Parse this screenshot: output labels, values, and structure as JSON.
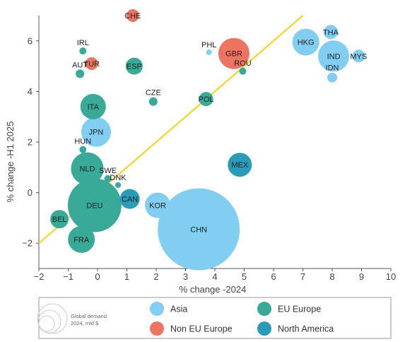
{
  "chart_data": {
    "type": "scatter",
    "xlabel": "% change -2024",
    "ylabel": "% change -H1 2025",
    "xlim": [
      -2,
      10
    ],
    "ylim": [
      -3,
      7
    ],
    "xticks": [
      -2,
      -1,
      0,
      1,
      2,
      3,
      4,
      5,
      6,
      7,
      8,
      9,
      10
    ],
    "yticks": [
      -2,
      0,
      2,
      4,
      6
    ],
    "grid": false,
    "reference_line": {
      "x": [
        -2,
        7
      ],
      "y": [
        -2,
        7
      ],
      "color": "#f2d21b"
    },
    "colors": {
      "Asia": "#82cdf2",
      "EU Europe": "#3aaa98",
      "Non EU Europe": "#ee7462",
      "North America": "#2a9cb8"
    },
    "legend": {
      "size_label": "Global demand\n2024, mld $",
      "groups": [
        "Asia",
        "EU Europe",
        "Non EU Europe",
        "North America"
      ]
    },
    "points": [
      {
        "label": "CHE",
        "group": "Non EU Europe",
        "x": 1.2,
        "y": 7.0,
        "size": 9
      },
      {
        "label": "IRL",
        "group": "EU Europe",
        "x": -0.5,
        "y": 5.6,
        "size": 5
      },
      {
        "label": "TUR",
        "group": "Non EU Europe",
        "x": -0.2,
        "y": 5.1,
        "size": 9
      },
      {
        "label": "AUT",
        "group": "EU Europe",
        "x": -0.6,
        "y": 4.7,
        "size": 6
      },
      {
        "label": "ESP",
        "group": "EU Europe",
        "x": 1.25,
        "y": 5.0,
        "size": 12
      },
      {
        "label": "PHL",
        "group": "Asia",
        "x": 3.8,
        "y": 5.55,
        "size": 4
      },
      {
        "label": "GBR",
        "group": "Non EU Europe",
        "x": 4.65,
        "y": 5.5,
        "size": 22
      },
      {
        "label": "ROU",
        "group": "EU Europe",
        "x": 4.95,
        "y": 4.8,
        "size": 5
      },
      {
        "label": "HKG",
        "group": "Asia",
        "x": 7.1,
        "y": 5.95,
        "size": 19
      },
      {
        "label": "THA",
        "group": "Asia",
        "x": 7.95,
        "y": 6.35,
        "size": 10
      },
      {
        "label": "IND",
        "group": "Asia",
        "x": 8.05,
        "y": 5.4,
        "size": 22
      },
      {
        "label": "MYS",
        "group": "Asia",
        "x": 8.9,
        "y": 5.4,
        "size": 9
      },
      {
        "label": "IDN",
        "group": "Asia",
        "x": 8.0,
        "y": 4.55,
        "size": 7
      },
      {
        "label": "ITA",
        "group": "EU Europe",
        "x": -0.15,
        "y": 3.4,
        "size": 18
      },
      {
        "label": "CZE",
        "group": "EU Europe",
        "x": 1.9,
        "y": 3.6,
        "size": 6
      },
      {
        "label": "POL",
        "group": "EU Europe",
        "x": 3.7,
        "y": 3.7,
        "size": 10
      },
      {
        "label": "JPN",
        "group": "Asia",
        "x": -0.05,
        "y": 2.4,
        "size": 21
      },
      {
        "label": "HUN",
        "group": "EU Europe",
        "x": -0.5,
        "y": 1.7,
        "size": 5
      },
      {
        "label": "NLD",
        "group": "EU Europe",
        "x": -0.35,
        "y": 0.95,
        "size": 23
      },
      {
        "label": "SWE",
        "group": "EU Europe",
        "x": 0.35,
        "y": 0.55,
        "size": 5
      },
      {
        "label": "DNK",
        "group": "EU Europe",
        "x": 0.7,
        "y": 0.3,
        "size": 4
      },
      {
        "label": "MEX",
        "group": "North America",
        "x": 4.85,
        "y": 1.1,
        "size": 17
      },
      {
        "label": "DEU",
        "group": "EU Europe",
        "x": -0.1,
        "y": -0.5,
        "size": 38
      },
      {
        "label": "CAN",
        "group": "North America",
        "x": 1.1,
        "y": -0.25,
        "size": 14
      },
      {
        "label": "KOR",
        "group": "Asia",
        "x": 2.05,
        "y": -0.5,
        "size": 18
      },
      {
        "label": "BEL",
        "group": "EU Europe",
        "x": -1.3,
        "y": -1.05,
        "size": 13
      },
      {
        "label": "FRA",
        "group": "EU Europe",
        "x": -0.55,
        "y": -1.85,
        "size": 19
      },
      {
        "label": "CHN",
        "group": "Asia",
        "x": 3.45,
        "y": -1.45,
        "size": 58
      }
    ]
  }
}
